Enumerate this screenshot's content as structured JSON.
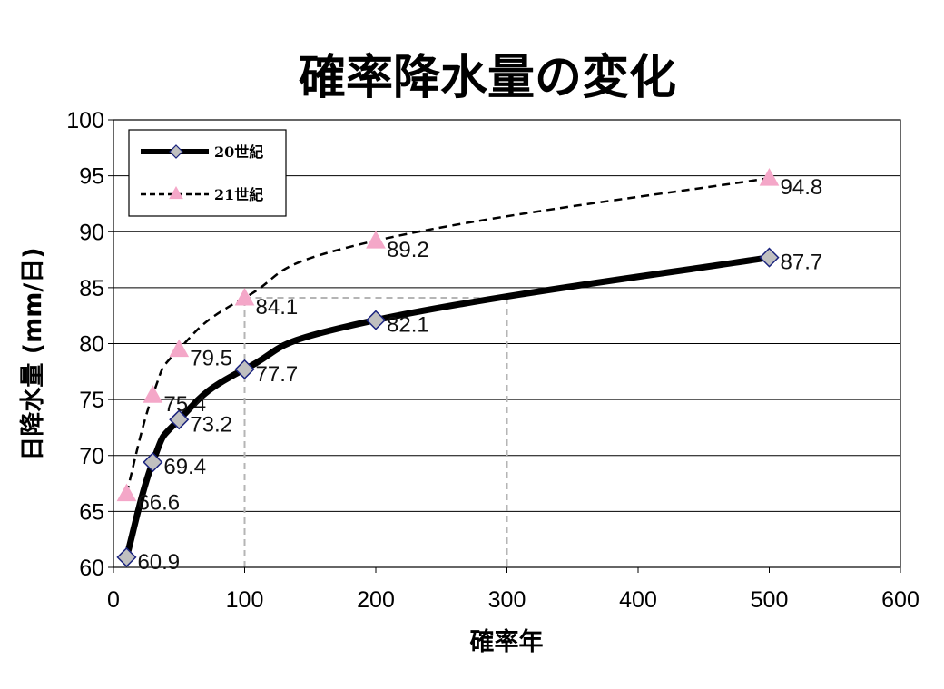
{
  "chart_data": {
    "type": "line",
    "title": "確率降水量の変化",
    "xlabel": "確率年",
    "ylabel": "日降水量 (mm/日)",
    "xlim": [
      0,
      600
    ],
    "ylim": [
      60,
      100
    ],
    "xticks": [
      0,
      100,
      200,
      300,
      400,
      500,
      600
    ],
    "yticks": [
      60,
      65,
      70,
      75,
      80,
      85,
      90,
      95,
      100
    ],
    "grid": "horizontal",
    "legend_position": "top-left",
    "series": [
      {
        "name": "20世紀",
        "line_style": "solid",
        "marker": "diamond",
        "color": "#000000",
        "marker_color": "#c0c0c0",
        "x": [
          10,
          30,
          50,
          100,
          200,
          500
        ],
        "y": [
          60.9,
          69.4,
          73.2,
          77.7,
          82.1,
          87.7
        ],
        "labels": [
          "60.9",
          "69.4",
          "73.2",
          "77.7",
          "82.1",
          "87.7"
        ]
      },
      {
        "name": "21世紀",
        "line_style": "dashed",
        "marker": "triangle",
        "color": "#000000",
        "marker_color": "#f4a7c8",
        "x": [
          10,
          30,
          50,
          100,
          200,
          500
        ],
        "y": [
          66.6,
          75.4,
          79.5,
          84.1,
          89.2,
          94.8
        ],
        "labels": [
          "66.6",
          "75.4",
          "79.5",
          "84.1",
          "89.2",
          "94.8"
        ]
      }
    ],
    "reference_lines": [
      {
        "from": [
          100,
          60
        ],
        "to": [
          100,
          84.1
        ]
      },
      {
        "from": [
          100,
          84.1
        ],
        "to": [
          300,
          84.1
        ]
      },
      {
        "from": [
          300,
          84.1
        ],
        "to": [
          300,
          60
        ]
      }
    ]
  }
}
